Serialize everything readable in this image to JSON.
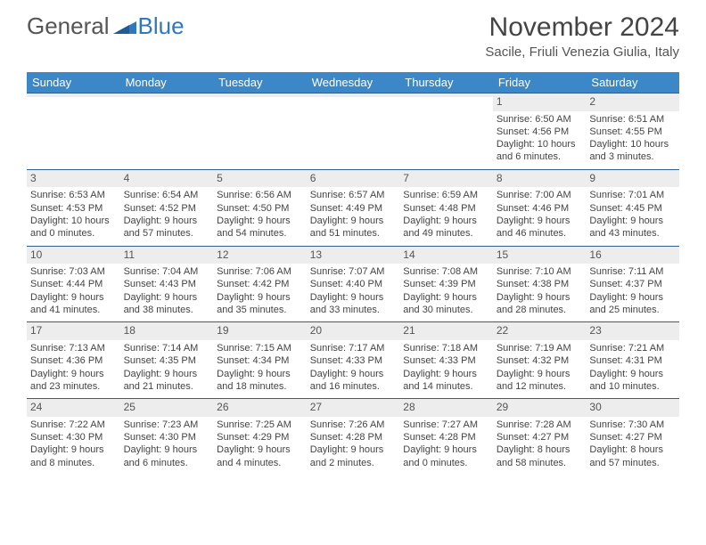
{
  "brand": {
    "part1": "General",
    "part2": "Blue"
  },
  "title": "November 2024",
  "location": "Sacile, Friuli Venezia Giulia, Italy",
  "colors": {
    "header_bg": "#3b87c8",
    "header_fg": "#ffffff",
    "daynum_bg": "#ededed",
    "border": "#2f5f8a",
    "text": "#444444"
  },
  "weekdays": [
    "Sunday",
    "Monday",
    "Tuesday",
    "Wednesday",
    "Thursday",
    "Friday",
    "Saturday"
  ],
  "weeks": [
    [
      {
        "day": "",
        "sunrise": "",
        "sunset": "",
        "daylight": ""
      },
      {
        "day": "",
        "sunrise": "",
        "sunset": "",
        "daylight": ""
      },
      {
        "day": "",
        "sunrise": "",
        "sunset": "",
        "daylight": ""
      },
      {
        "day": "",
        "sunrise": "",
        "sunset": "",
        "daylight": ""
      },
      {
        "day": "",
        "sunrise": "",
        "sunset": "",
        "daylight": ""
      },
      {
        "day": "1",
        "sunrise": "Sunrise: 6:50 AM",
        "sunset": "Sunset: 4:56 PM",
        "daylight": "Daylight: 10 hours and 6 minutes."
      },
      {
        "day": "2",
        "sunrise": "Sunrise: 6:51 AM",
        "sunset": "Sunset: 4:55 PM",
        "daylight": "Daylight: 10 hours and 3 minutes."
      }
    ],
    [
      {
        "day": "3",
        "sunrise": "Sunrise: 6:53 AM",
        "sunset": "Sunset: 4:53 PM",
        "daylight": "Daylight: 10 hours and 0 minutes."
      },
      {
        "day": "4",
        "sunrise": "Sunrise: 6:54 AM",
        "sunset": "Sunset: 4:52 PM",
        "daylight": "Daylight: 9 hours and 57 minutes."
      },
      {
        "day": "5",
        "sunrise": "Sunrise: 6:56 AM",
        "sunset": "Sunset: 4:50 PM",
        "daylight": "Daylight: 9 hours and 54 minutes."
      },
      {
        "day": "6",
        "sunrise": "Sunrise: 6:57 AM",
        "sunset": "Sunset: 4:49 PM",
        "daylight": "Daylight: 9 hours and 51 minutes."
      },
      {
        "day": "7",
        "sunrise": "Sunrise: 6:59 AM",
        "sunset": "Sunset: 4:48 PM",
        "daylight": "Daylight: 9 hours and 49 minutes."
      },
      {
        "day": "8",
        "sunrise": "Sunrise: 7:00 AM",
        "sunset": "Sunset: 4:46 PM",
        "daylight": "Daylight: 9 hours and 46 minutes."
      },
      {
        "day": "9",
        "sunrise": "Sunrise: 7:01 AM",
        "sunset": "Sunset: 4:45 PM",
        "daylight": "Daylight: 9 hours and 43 minutes."
      }
    ],
    [
      {
        "day": "10",
        "sunrise": "Sunrise: 7:03 AM",
        "sunset": "Sunset: 4:44 PM",
        "daylight": "Daylight: 9 hours and 41 minutes."
      },
      {
        "day": "11",
        "sunrise": "Sunrise: 7:04 AM",
        "sunset": "Sunset: 4:43 PM",
        "daylight": "Daylight: 9 hours and 38 minutes."
      },
      {
        "day": "12",
        "sunrise": "Sunrise: 7:06 AM",
        "sunset": "Sunset: 4:42 PM",
        "daylight": "Daylight: 9 hours and 35 minutes."
      },
      {
        "day": "13",
        "sunrise": "Sunrise: 7:07 AM",
        "sunset": "Sunset: 4:40 PM",
        "daylight": "Daylight: 9 hours and 33 minutes."
      },
      {
        "day": "14",
        "sunrise": "Sunrise: 7:08 AM",
        "sunset": "Sunset: 4:39 PM",
        "daylight": "Daylight: 9 hours and 30 minutes."
      },
      {
        "day": "15",
        "sunrise": "Sunrise: 7:10 AM",
        "sunset": "Sunset: 4:38 PM",
        "daylight": "Daylight: 9 hours and 28 minutes."
      },
      {
        "day": "16",
        "sunrise": "Sunrise: 7:11 AM",
        "sunset": "Sunset: 4:37 PM",
        "daylight": "Daylight: 9 hours and 25 minutes."
      }
    ],
    [
      {
        "day": "17",
        "sunrise": "Sunrise: 7:13 AM",
        "sunset": "Sunset: 4:36 PM",
        "daylight": "Daylight: 9 hours and 23 minutes."
      },
      {
        "day": "18",
        "sunrise": "Sunrise: 7:14 AM",
        "sunset": "Sunset: 4:35 PM",
        "daylight": "Daylight: 9 hours and 21 minutes."
      },
      {
        "day": "19",
        "sunrise": "Sunrise: 7:15 AM",
        "sunset": "Sunset: 4:34 PM",
        "daylight": "Daylight: 9 hours and 18 minutes."
      },
      {
        "day": "20",
        "sunrise": "Sunrise: 7:17 AM",
        "sunset": "Sunset: 4:33 PM",
        "daylight": "Daylight: 9 hours and 16 minutes."
      },
      {
        "day": "21",
        "sunrise": "Sunrise: 7:18 AM",
        "sunset": "Sunset: 4:33 PM",
        "daylight": "Daylight: 9 hours and 14 minutes."
      },
      {
        "day": "22",
        "sunrise": "Sunrise: 7:19 AM",
        "sunset": "Sunset: 4:32 PM",
        "daylight": "Daylight: 9 hours and 12 minutes."
      },
      {
        "day": "23",
        "sunrise": "Sunrise: 7:21 AM",
        "sunset": "Sunset: 4:31 PM",
        "daylight": "Daylight: 9 hours and 10 minutes."
      }
    ],
    [
      {
        "day": "24",
        "sunrise": "Sunrise: 7:22 AM",
        "sunset": "Sunset: 4:30 PM",
        "daylight": "Daylight: 9 hours and 8 minutes."
      },
      {
        "day": "25",
        "sunrise": "Sunrise: 7:23 AM",
        "sunset": "Sunset: 4:30 PM",
        "daylight": "Daylight: 9 hours and 6 minutes."
      },
      {
        "day": "26",
        "sunrise": "Sunrise: 7:25 AM",
        "sunset": "Sunset: 4:29 PM",
        "daylight": "Daylight: 9 hours and 4 minutes."
      },
      {
        "day": "27",
        "sunrise": "Sunrise: 7:26 AM",
        "sunset": "Sunset: 4:28 PM",
        "daylight": "Daylight: 9 hours and 2 minutes."
      },
      {
        "day": "28",
        "sunrise": "Sunrise: 7:27 AM",
        "sunset": "Sunset: 4:28 PM",
        "daylight": "Daylight: 9 hours and 0 minutes."
      },
      {
        "day": "29",
        "sunrise": "Sunrise: 7:28 AM",
        "sunset": "Sunset: 4:27 PM",
        "daylight": "Daylight: 8 hours and 58 minutes."
      },
      {
        "day": "30",
        "sunrise": "Sunrise: 7:30 AM",
        "sunset": "Sunset: 4:27 PM",
        "daylight": "Daylight: 8 hours and 57 minutes."
      }
    ]
  ]
}
